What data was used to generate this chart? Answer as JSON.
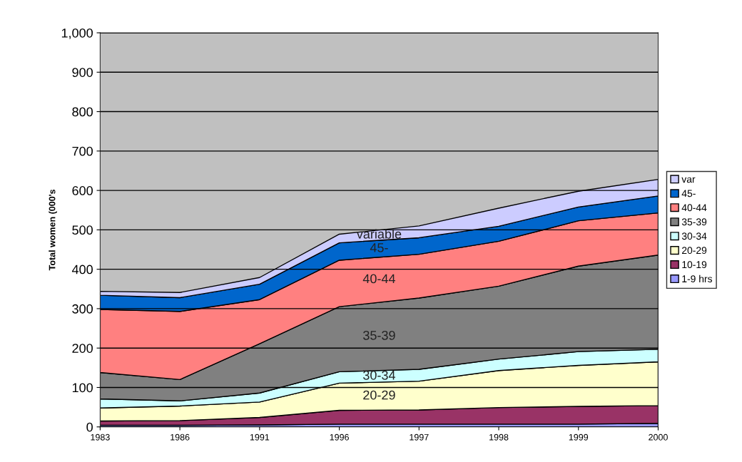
{
  "chart_data": {
    "type": "area",
    "stacked": true,
    "ylabel": "Total women (000's",
    "categories": [
      "1983",
      "1986",
      "1991",
      "1996",
      "1997",
      "1998",
      "1999",
      "2000"
    ],
    "series": [
      {
        "name": "1-9 hrs",
        "color": "#9999ff",
        "values": [
          4,
          4,
          5,
          7,
          7,
          7,
          7,
          9
        ]
      },
      {
        "name": "10-19",
        "color": "#993366",
        "values": [
          11,
          12,
          19,
          35,
          36,
          42,
          45,
          45
        ]
      },
      {
        "name": "20-29",
        "color": "#ffffcc",
        "values": [
          33,
          37,
          39,
          69,
          73,
          94,
          104,
          111
        ]
      },
      {
        "name": "30-34",
        "color": "#ccffff",
        "values": [
          23,
          13,
          23,
          29,
          30,
          29,
          35,
          32
        ]
      },
      {
        "name": "35-39",
        "color": "#808080",
        "values": [
          67,
          54,
          125,
          165,
          181,
          185,
          217,
          239
        ]
      },
      {
        "name": "40-44",
        "color": "#ff8080",
        "values": [
          160,
          173,
          112,
          118,
          111,
          114,
          115,
          107
        ]
      },
      {
        "name": "45-",
        "color": "#0066cc",
        "values": [
          36,
          35,
          39,
          44,
          42,
          38,
          35,
          43
        ]
      },
      {
        "name": "var",
        "color": "#ccccff",
        "values": [
          10,
          13,
          17,
          22,
          30,
          46,
          40,
          42
        ]
      }
    ],
    "ylim": [
      0,
      1000
    ],
    "yticks": [
      0,
      100,
      200,
      300,
      400,
      500,
      600,
      700,
      800,
      900,
      {
        "value": 1000,
        "label": "1,000"
      }
    ],
    "grid": "y",
    "legend": "right",
    "annotations": [
      "variable",
      "45-",
      "40-44",
      "35-39",
      "30-34",
      "20-29"
    ]
  }
}
